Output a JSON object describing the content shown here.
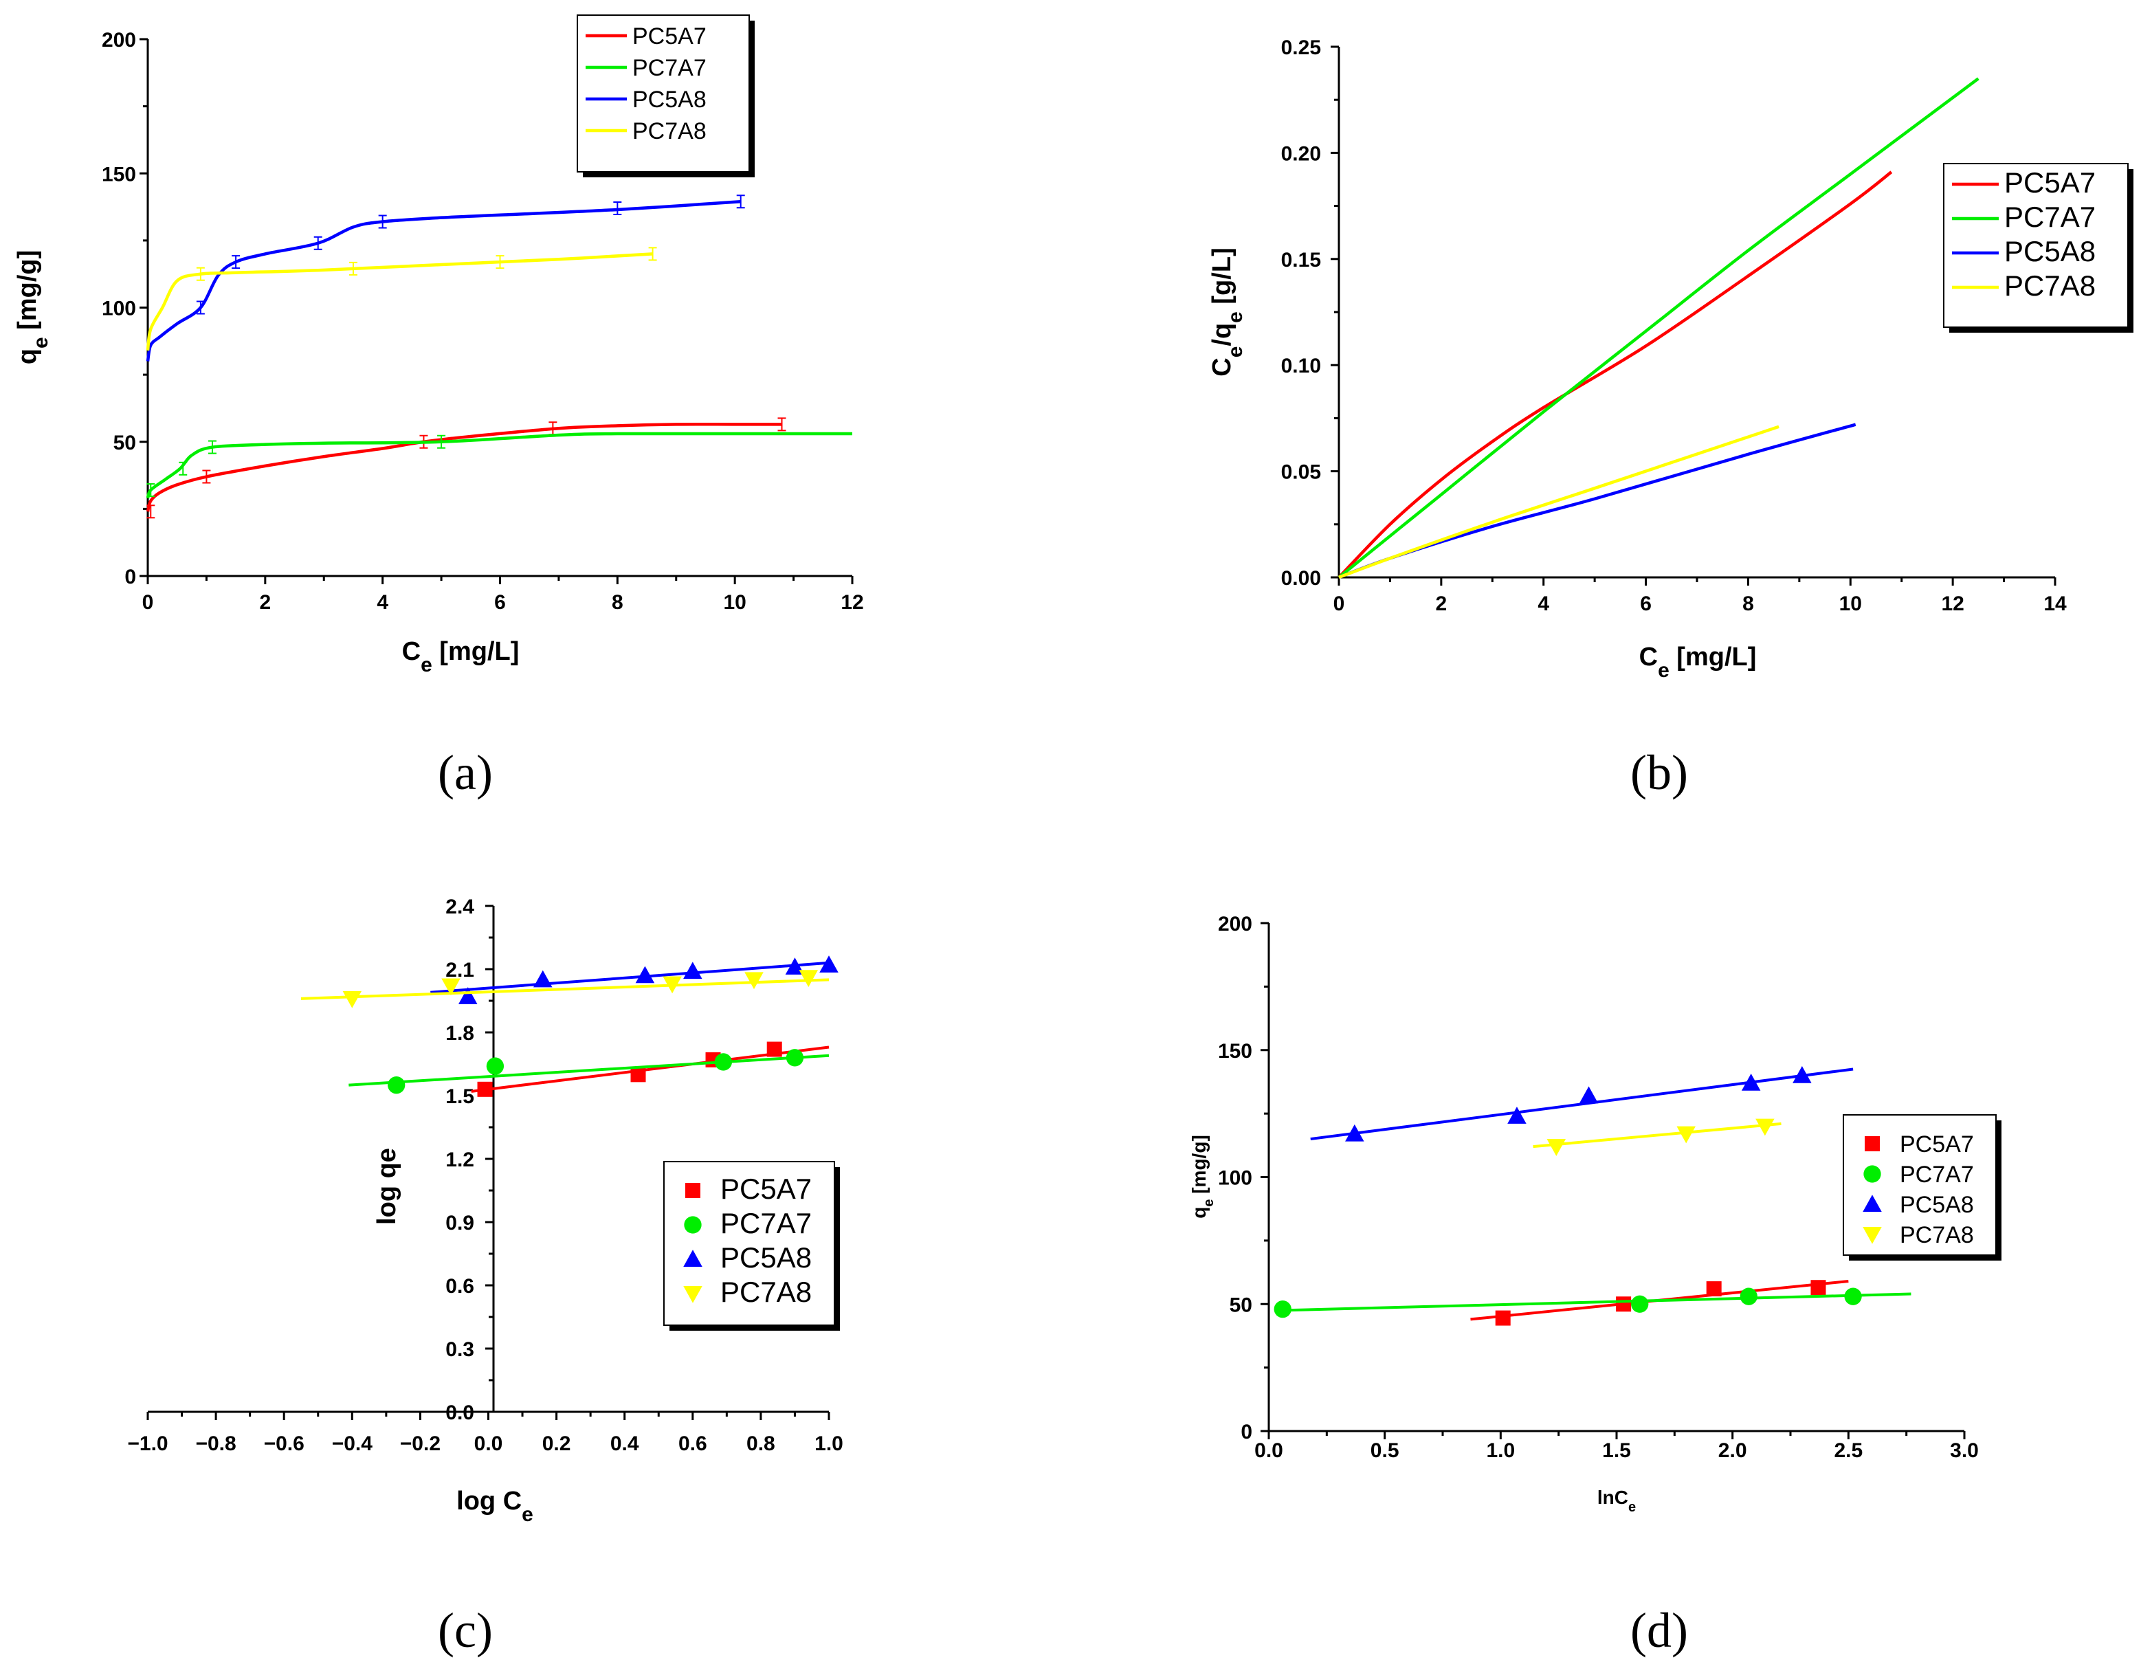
{
  "panels": [
    {
      "id": "a",
      "panel_label": "(a)",
      "xlabel_main": "C",
      "xlabel_sub": "e",
      "xlabel_unit": " [mg/L]",
      "ylabel_main": "q",
      "ylabel_sub": "e",
      "ylabel_unit": " [mg/g]",
      "x_ticks": [
        "0",
        "2",
        "4",
        "6",
        "8",
        "10",
        "12"
      ],
      "y_ticks": [
        "0",
        "50",
        "100",
        "150",
        "200"
      ],
      "legend": [
        "PC5A7",
        "PC7A7",
        "PC5A8",
        "PC7A8"
      ]
    },
    {
      "id": "b",
      "panel_label": "(b)",
      "xlabel_main": "C",
      "xlabel_sub": "e",
      "xlabel_unit": " [mg/L]",
      "ylabel_main": "C",
      "ylabel_sub": "e",
      "ylabel_mid": "/q",
      "ylabel_sub2": "e",
      "ylabel_unit": " [g/L]",
      "x_ticks": [
        "0",
        "2",
        "4",
        "6",
        "8",
        "10",
        "12",
        "14"
      ],
      "y_ticks": [
        "0.00",
        "0.05",
        "0.10",
        "0.15",
        "0.20",
        "0.25"
      ],
      "legend": [
        "PC5A7",
        "PC7A7",
        "PC5A8",
        "PC7A8"
      ]
    },
    {
      "id": "c",
      "panel_label": "(c)",
      "xlabel_main": "log C",
      "xlabel_sub": "e",
      "ylabel_main": "log qe",
      "x_ticks": [
        "−1.0",
        "−0.8",
        "−0.6",
        "−0.4",
        "−0.2",
        "0.0",
        "0.2",
        "0.4",
        "0.6",
        "0.8",
        "1.0"
      ],
      "y_ticks": [
        "0.0",
        "0.3",
        "0.6",
        "0.9",
        "1.2",
        "1.5",
        "1.8",
        "2.1",
        "2.4"
      ],
      "legend": [
        "PC5A7",
        "PC7A7",
        "PC5A8",
        "PC7A8"
      ]
    },
    {
      "id": "d",
      "panel_label": "(d)",
      "xlabel_main": "lnC",
      "xlabel_sub": "e",
      "ylabel_main": "q",
      "ylabel_sub": "e",
      "ylabel_unit": " [mg/g]",
      "x_ticks": [
        "0.0",
        "0.5",
        "1.0",
        "1.5",
        "2.0",
        "2.5",
        "3.0"
      ],
      "y_ticks": [
        "0",
        "50",
        "100",
        "150",
        "200"
      ],
      "legend": [
        "PC5A7",
        "PC7A7",
        "PC5A8",
        "PC7A8"
      ]
    }
  ],
  "colors": {
    "PC5A7": "#ff0000",
    "PC7A7": "#00ee00",
    "PC5A8": "#0000ff",
    "PC7A8": "#ffff00"
  },
  "chart_data": [
    {
      "type": "line",
      "panel": "a",
      "xlabel": "Ce [mg/L]",
      "ylabel": "qe [mg/g]",
      "xlim": [
        0,
        12
      ],
      "ylim": [
        0,
        200
      ],
      "legend_position": "top-center",
      "series": [
        {
          "name": "PC5A7",
          "x": [
            0,
            0.05,
            0.2,
            0.5,
            1.0,
            2.0,
            3.0,
            4.0,
            4.7,
            5.5,
            7.0,
            8.0,
            9.0,
            10.0,
            10.8
          ],
          "y": [
            24,
            28,
            31,
            34,
            37,
            41,
            44.5,
            47.5,
            50,
            52,
            55,
            56,
            56.5,
            56.5,
            56.5
          ],
          "error_x": [
            0.05,
            1.0,
            4.7,
            6.9,
            10.8
          ],
          "error_y": [
            24,
            37,
            50,
            55,
            56.5
          ]
        },
        {
          "name": "PC7A7",
          "x": [
            0,
            0.05,
            0.3,
            0.55,
            0.75,
            1.1,
            2.0,
            3.0,
            5.0,
            7.0,
            8.0,
            10.0,
            12.0
          ],
          "y": [
            29,
            32,
            36,
            40,
            45,
            48,
            49,
            49.5,
            50,
            52.5,
            53,
            53,
            53
          ],
          "error_x": [
            0.05,
            0.6,
            1.1,
            5.0
          ],
          "error_y": [
            32,
            40,
            48,
            50
          ]
        },
        {
          "name": "PC5A8",
          "x": [
            0,
            0.05,
            0.2,
            0.5,
            0.9,
            1.2,
            1.5,
            2.0,
            2.9,
            3.5,
            4.0,
            5.0,
            6.0,
            8.0,
            10.1
          ],
          "y": [
            80,
            86,
            89,
            94,
            100,
            112,
            117,
            120,
            124,
            130,
            132,
            133.5,
            134.5,
            136.5,
            139.5
          ],
          "error_x": [
            0.9,
            1.5,
            2.9,
            4.0,
            8.0,
            10.1
          ],
          "error_y": [
            100,
            117,
            124,
            132,
            137,
            139.5
          ]
        },
        {
          "name": "PC7A8",
          "x": [
            0,
            0.05,
            0.25,
            0.5,
            0.9,
            1.5,
            3.0,
            5.0,
            7.0,
            8.6
          ],
          "y": [
            84,
            92,
            100,
            110,
            112.5,
            113,
            114,
            116,
            118,
            120
          ],
          "error_x": [
            0.9,
            3.5,
            6.0,
            8.6
          ],
          "error_y": [
            112.5,
            114.5,
            117,
            120
          ]
        }
      ]
    },
    {
      "type": "line",
      "panel": "b",
      "xlabel": "Ce [mg/L]",
      "ylabel": "Ce/qe [g/L]",
      "xlim": [
        0,
        14
      ],
      "ylim": [
        0,
        0.25
      ],
      "legend_position": "right",
      "series": [
        {
          "name": "PC5A7",
          "x": [
            0,
            1,
            2,
            3,
            4,
            6,
            8,
            10,
            10.8
          ],
          "y": [
            0,
            0.025,
            0.046,
            0.064,
            0.08,
            0.109,
            0.142,
            0.176,
            0.191
          ]
        },
        {
          "name": "PC7A7",
          "x": [
            0,
            2,
            4,
            6,
            8,
            10,
            12.5
          ],
          "y": [
            0,
            0.039,
            0.078,
            0.116,
            0.154,
            0.19,
            0.235
          ]
        },
        {
          "name": "PC5A8",
          "x": [
            0,
            1,
            3,
            5,
            8,
            10.1
          ],
          "y": [
            0,
            0.009,
            0.024,
            0.037,
            0.058,
            0.072
          ]
        },
        {
          "name": "PC7A8",
          "x": [
            0,
            1,
            3,
            5,
            8.6
          ],
          "y": [
            0,
            0.009,
            0.026,
            0.042,
            0.071
          ]
        }
      ]
    },
    {
      "type": "scatter",
      "panel": "c",
      "xlabel": "log Ce",
      "ylabel": "log qe",
      "xlim": [
        -1.0,
        1.0
      ],
      "ylim": [
        0,
        2.4
      ],
      "legend_position": "right",
      "series": [
        {
          "name": "PC5A7",
          "marker": "square",
          "x": [
            -0.01,
            0.44,
            0.66,
            0.84
          ],
          "y": [
            1.53,
            1.6,
            1.67,
            1.72
          ],
          "fit_x": [
            -0.05,
            1.0
          ],
          "fit_y": [
            1.52,
            1.73
          ]
        },
        {
          "name": "PC7A7",
          "marker": "circle",
          "x": [
            -0.27,
            0.02,
            0.69,
            0.9
          ],
          "y": [
            1.55,
            1.64,
            1.66,
            1.68
          ],
          "fit_x": [
            -0.41,
            1.0
          ],
          "fit_y": [
            1.55,
            1.69
          ]
        },
        {
          "name": "PC5A8",
          "marker": "triangle-up",
          "x": [
            -0.06,
            0.16,
            0.46,
            0.6,
            0.9,
            1.0
          ],
          "y": [
            1.97,
            2.05,
            2.07,
            2.09,
            2.11,
            2.12
          ],
          "fit_x": [
            -0.17,
            1.0
          ],
          "fit_y": [
            1.99,
            2.13
          ]
        },
        {
          "name": "PC7A8",
          "marker": "triangle-down",
          "x": [
            -0.4,
            -0.11,
            0.54,
            0.78,
            0.94
          ],
          "y": [
            1.96,
            2.02,
            2.03,
            2.05,
            2.06
          ],
          "fit_x": [
            -0.55,
            1.0
          ],
          "fit_y": [
            1.96,
            2.05
          ]
        }
      ]
    },
    {
      "type": "scatter",
      "panel": "d",
      "xlabel": "lnCe",
      "ylabel": "qe [mg/g]",
      "xlim": [
        0,
        3.0
      ],
      "ylim": [
        0,
        200
      ],
      "legend_position": "right",
      "series": [
        {
          "name": "PC5A7",
          "marker": "square",
          "x": [
            1.01,
            1.53,
            1.92,
            2.37
          ],
          "y": [
            44.5,
            50,
            56,
            56.5
          ],
          "fit_x": [
            0.87,
            2.5
          ],
          "fit_y": [
            44,
            59
          ]
        },
        {
          "name": "PC7A7",
          "marker": "circle",
          "x": [
            0.06,
            1.6,
            2.07,
            2.52
          ],
          "y": [
            48,
            50,
            53,
            53
          ],
          "fit_x": [
            0.05,
            2.77
          ],
          "fit_y": [
            47.5,
            54
          ]
        },
        {
          "name": "PC5A8",
          "marker": "triangle-up",
          "x": [
            0.37,
            1.07,
            1.38,
            2.08,
            2.3
          ],
          "y": [
            117,
            124,
            132,
            137,
            140
          ],
          "fit_x": [
            0.18,
            2.52
          ],
          "fit_y": [
            115,
            142.5
          ]
        },
        {
          "name": "PC7A8",
          "marker": "triangle-down",
          "x": [
            1.24,
            1.8,
            2.14
          ],
          "y": [
            112,
            117,
            120
          ],
          "fit_x": [
            1.14,
            2.21
          ],
          "fit_y": [
            112,
            121
          ]
        }
      ]
    }
  ]
}
